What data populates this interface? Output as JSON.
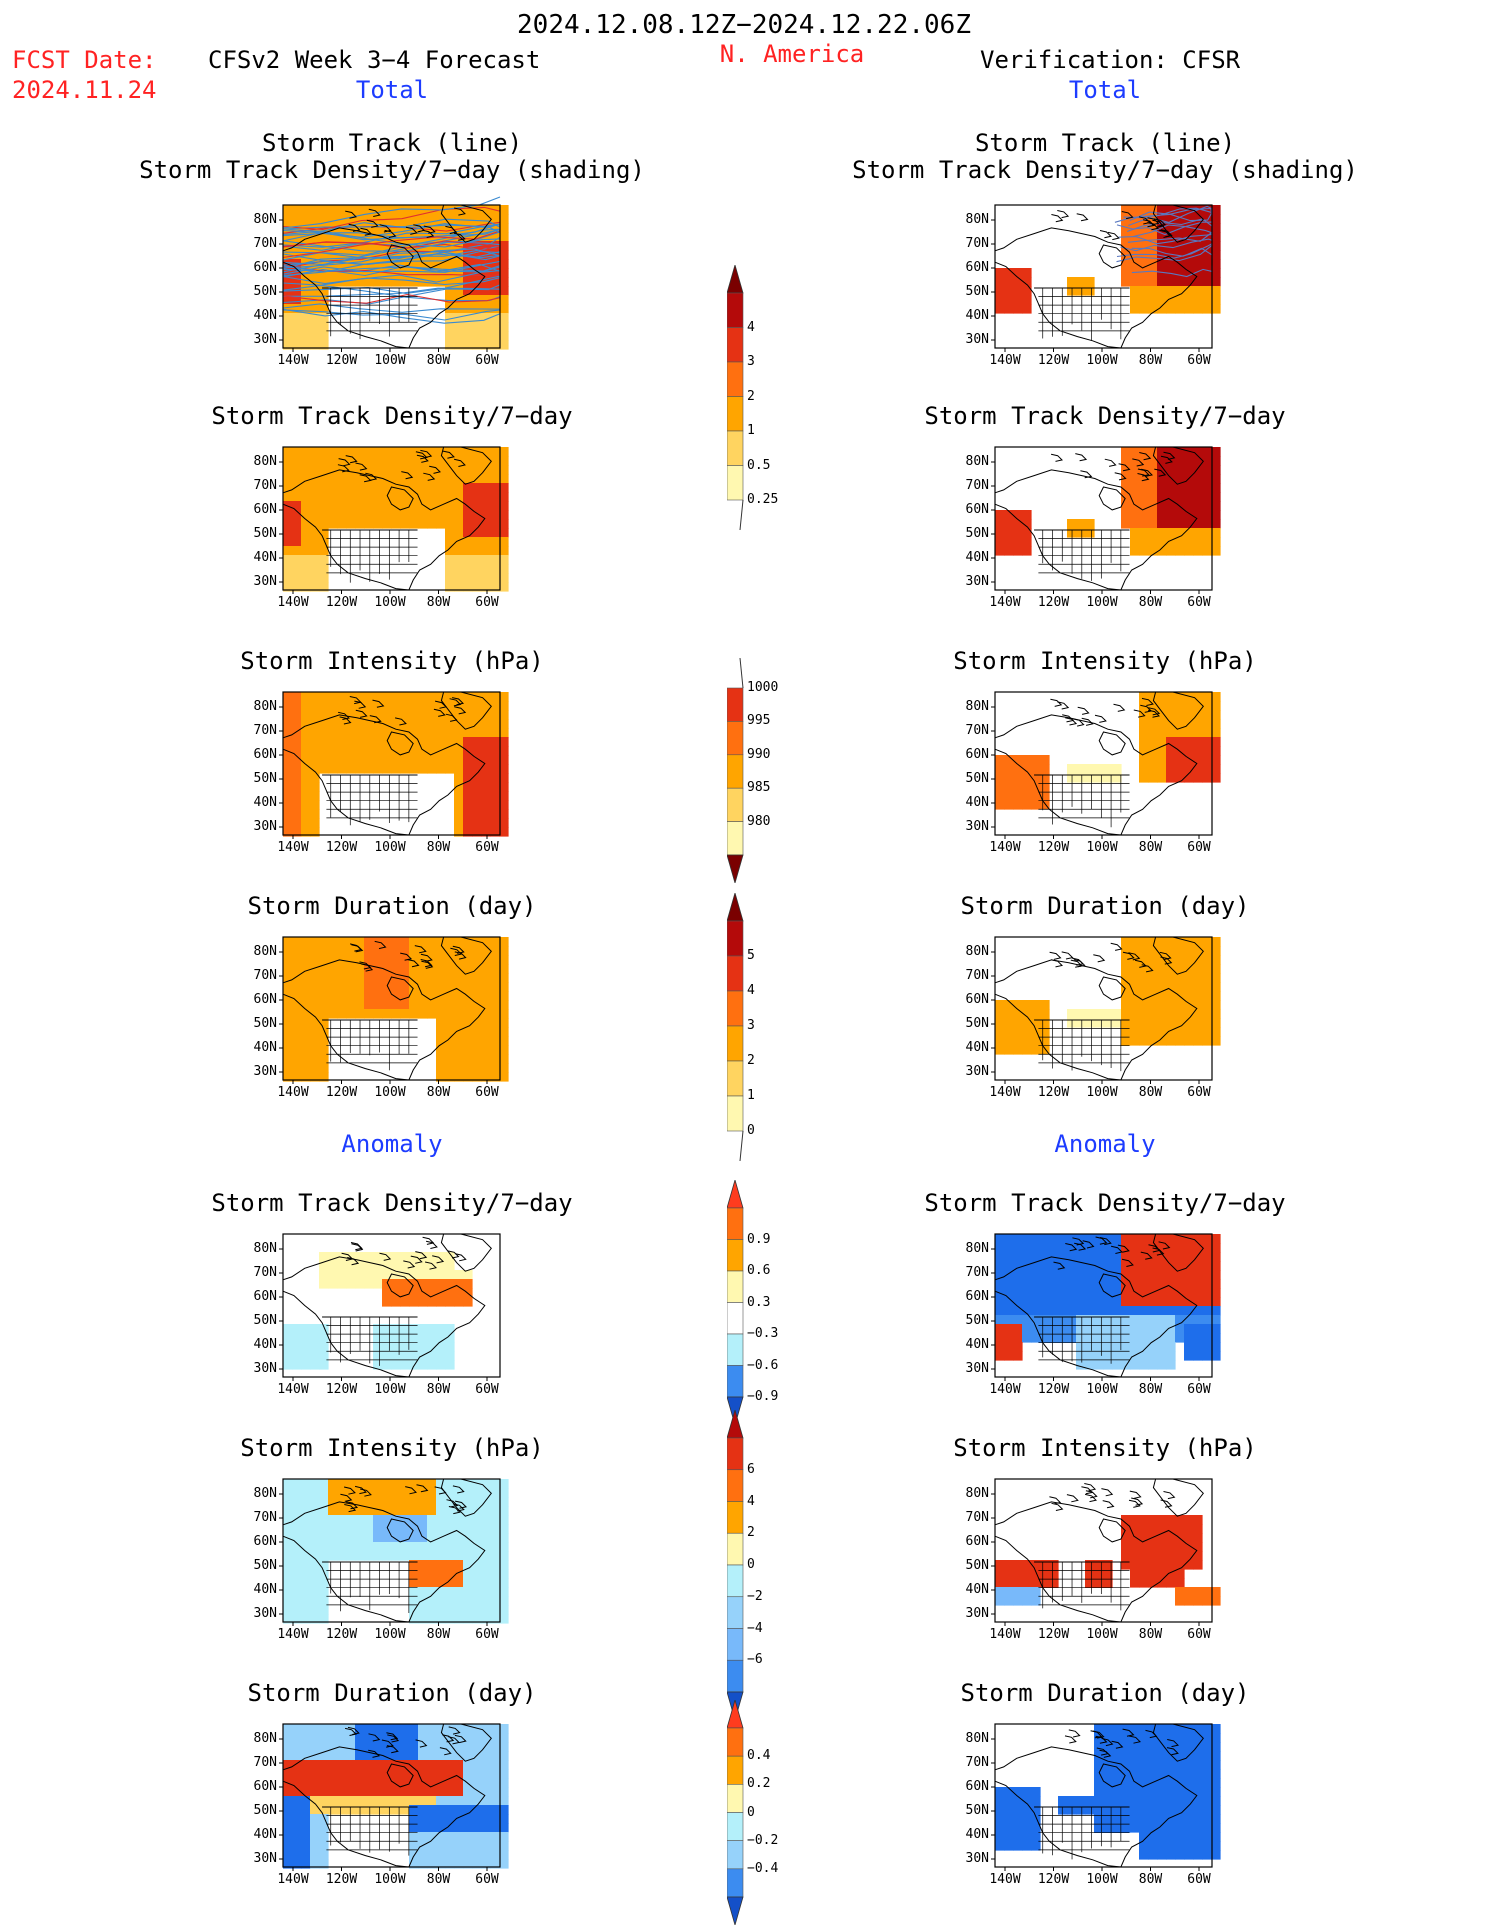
{
  "header": {
    "period": "2024.12.08.12Z−2024.12.22.06Z",
    "fcst_label": "FCST Date:",
    "fcst_date": "2024.11.24",
    "forecast_title": "CFSv2 Week 3−4 Forecast",
    "region": "N. America",
    "verification": "Verification: CFSR",
    "total_label": "Total",
    "anomaly_label": "Anomaly"
  },
  "axes": {
    "lat_ticks": [
      "80N",
      "70N",
      "60N",
      "50N",
      "40N",
      "30N"
    ],
    "lon_ticks": [
      "140W",
      "120W",
      "100W",
      "80W",
      "60W"
    ]
  },
  "panels": {
    "track": {
      "title": "Storm Track (line)\nStorm Track Density/7−day (shading)"
    },
    "density": {
      "title": "Storm Track Density/7−day"
    },
    "intensity": {
      "title": "Storm Intensity (hPa)"
    },
    "duration": {
      "title": "Storm Duration (day)"
    }
  },
  "colorbars": [
    {
      "name": "density-total",
      "labels": [
        "4",
        "3",
        "2",
        "1",
        "0.5",
        "0.25"
      ]
    },
    {
      "name": "intensity-total",
      "labels": [
        "1000",
        "995",
        "990",
        "985",
        "980"
      ]
    },
    {
      "name": "duration-total",
      "labels": [
        "5",
        "4",
        "3",
        "2",
        "1",
        "0"
      ]
    },
    {
      "name": "density-anomaly",
      "labels": [
        "0.9",
        "0.6",
        "0.3",
        "−0.3",
        "−0.6",
        "−0.9"
      ]
    },
    {
      "name": "intensity-anomaly",
      "labels": [
        "6",
        "4",
        "2",
        "0",
        "−2",
        "−4",
        "−6"
      ]
    },
    {
      "name": "duration-anomaly",
      "labels": [
        "0.4",
        "0.2",
        "0",
        "−0.2",
        "−0.4"
      ]
    }
  ],
  "colors": {
    "warm": [
      "#fff8b0",
      "#ffd460",
      "#ffa500",
      "#ff7010",
      "#e53214",
      "#b40a0a",
      "#7a0000"
    ],
    "cool": [
      "#b4f0fa",
      "#96d2fa",
      "#78b9fa",
      "#3c8cf0",
      "#1e6eeb",
      "#1450c8"
    ],
    "track_line": "#3a8ad0",
    "track_line_hi": "#e03030"
  }
}
